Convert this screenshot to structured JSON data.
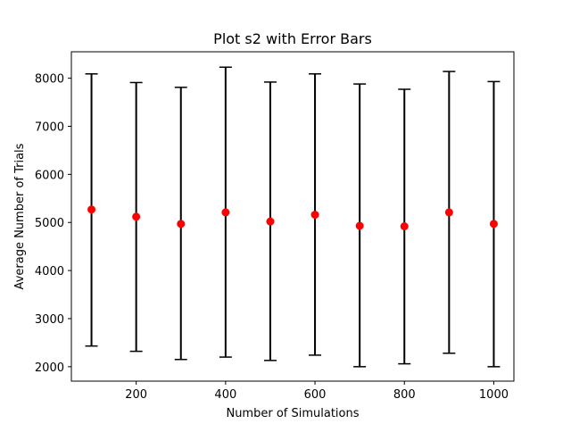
{
  "chart_data": {
    "type": "scatter",
    "title": "Plot s2 with Error Bars",
    "xlabel": "Number of Simulations",
    "ylabel": "Average Number of Trials",
    "xlim": [
      55,
      1045
    ],
    "ylim": [
      1700,
      8550
    ],
    "grid": false,
    "xticks": [
      200,
      400,
      600,
      800,
      1000
    ],
    "xtick_labels": [
      "200",
      "400",
      "600",
      "800",
      "1000"
    ],
    "yticks": [
      2000,
      3000,
      4000,
      5000,
      6000,
      7000,
      8000
    ],
    "ytick_labels": [
      "2000",
      "3000",
      "4000",
      "5000",
      "6000",
      "7000",
      "8000"
    ],
    "series": [
      {
        "name": "s2",
        "marker_color": "#ff0000",
        "errorbar_color": "#000000",
        "x": [
          100,
          200,
          300,
          400,
          500,
          600,
          700,
          800,
          900,
          1000
        ],
        "y": [
          5270,
          5120,
          4970,
          5210,
          5020,
          5160,
          4930,
          4920,
          5210,
          4970
        ],
        "yerr_low": [
          2430,
          2320,
          2150,
          2200,
          2130,
          2240,
          2000,
          2060,
          2280,
          2000
        ],
        "yerr_high": [
          8090,
          7910,
          7810,
          8230,
          7920,
          8090,
          7880,
          7770,
          8140,
          7930
        ]
      }
    ]
  }
}
